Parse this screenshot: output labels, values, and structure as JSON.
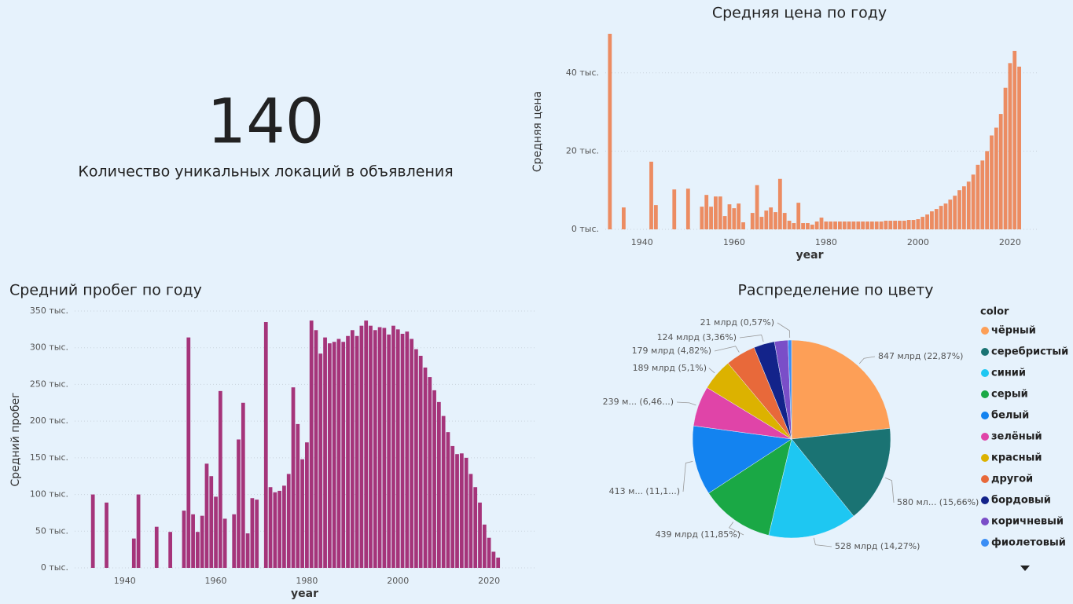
{
  "kpi": {
    "value": 140,
    "label": "Количество уникальных локаций в объявления"
  },
  "chart_data": [
    {
      "type": "bar",
      "title": "Средняя цена по году",
      "x_label": "year",
      "y_label": "Средняя цена",
      "color": "#ec8c62",
      "grid": true,
      "xlim": [
        1932,
        2026
      ],
      "ylim": [
        0,
        50000
      ],
      "xticks": [
        1940,
        1960,
        1980,
        2000,
        2020
      ],
      "yticks": [
        {
          "value": 0,
          "label": "0 тыс."
        },
        {
          "value": 20000,
          "label": "20 тыс."
        },
        {
          "value": 40000,
          "label": "40 тыс."
        }
      ],
      "x": [
        1933,
        1936,
        1942,
        1943,
        1947,
        1950,
        1953,
        1954,
        1955,
        1956,
        1957,
        1958,
        1959,
        1960,
        1961,
        1962,
        1964,
        1965,
        1966,
        1967,
        1968,
        1969,
        1970,
        1971,
        1972,
        1973,
        1974,
        1975,
        1976,
        1977,
        1978,
        1979,
        1980,
        1981,
        1982,
        1983,
        1984,
        1985,
        1986,
        1987,
        1988,
        1989,
        1990,
        1991,
        1992,
        1993,
        1994,
        1995,
        1996,
        1997,
        1998,
        1999,
        2000,
        2001,
        2002,
        2003,
        2004,
        2005,
        2006,
        2007,
        2008,
        2009,
        2010,
        2011,
        2012,
        2013,
        2014,
        2015,
        2016,
        2017,
        2018,
        2019,
        2020,
        2021,
        2022
      ],
      "values": [
        50000,
        5600,
        17300,
        6200,
        10200,
        10400,
        5800,
        8800,
        5800,
        8400,
        8400,
        3400,
        6400,
        5400,
        6600,
        1800,
        4200,
        11300,
        3200,
        4800,
        5600,
        4400,
        12900,
        4200,
        2200,
        1600,
        6800,
        1600,
        1600,
        1200,
        2000,
        3000,
        2000,
        2000,
        2000,
        2000,
        2000,
        2000,
        2000,
        2000,
        2000,
        2000,
        2000,
        2000,
        2000,
        2200,
        2200,
        2200,
        2200,
        2200,
        2400,
        2400,
        2600,
        3200,
        3800,
        4600,
        5200,
        6000,
        6600,
        7600,
        8600,
        10000,
        11000,
        12200,
        14000,
        16500,
        17600,
        20000,
        24000,
        26000,
        29500,
        36200,
        42500,
        45600,
        41600
      ]
    },
    {
      "type": "bar",
      "title": "Средний пробег по году",
      "x_label": "year",
      "y_label": "Средний пробег",
      "color": "#a5347a",
      "grid": true,
      "xlim": [
        1929,
        2030
      ],
      "ylim": [
        0,
        350000
      ],
      "xticks": [
        1940,
        1960,
        1980,
        2000,
        2020
      ],
      "yticks": [
        {
          "value": 0,
          "label": "0 тыс."
        },
        {
          "value": 50000,
          "label": "50 тыс."
        },
        {
          "value": 100000,
          "label": "100 тыс."
        },
        {
          "value": 150000,
          "label": "150 тыс."
        },
        {
          "value": 200000,
          "label": "200 тыс."
        },
        {
          "value": 250000,
          "label": "250 тыс."
        },
        {
          "value": 300000,
          "label": "300 тыс."
        },
        {
          "value": 350000,
          "label": "350 тыс."
        }
      ],
      "x": [
        1933,
        1936,
        1942,
        1943,
        1947,
        1950,
        1953,
        1954,
        1955,
        1956,
        1957,
        1958,
        1959,
        1960,
        1961,
        1962,
        1964,
        1965,
        1966,
        1967,
        1968,
        1969,
        1971,
        1972,
        1973,
        1974,
        1975,
        1976,
        1977,
        1978,
        1979,
        1980,
        1981,
        1982,
        1983,
        1984,
        1985,
        1986,
        1987,
        1988,
        1989,
        1990,
        1991,
        1992,
        1993,
        1994,
        1995,
        1996,
        1997,
        1998,
        1999,
        2000,
        2001,
        2002,
        2003,
        2004,
        2005,
        2006,
        2007,
        2008,
        2009,
        2010,
        2011,
        2012,
        2013,
        2014,
        2015,
        2016,
        2017,
        2018,
        2019,
        2020,
        2021,
        2022
      ],
      "values": [
        100000,
        89000,
        40000,
        100000,
        56000,
        49000,
        78000,
        314000,
        73000,
        49000,
        71000,
        142000,
        125000,
        97000,
        241000,
        67000,
        73000,
        175000,
        225000,
        47000,
        95000,
        93000,
        335000,
        110000,
        103000,
        105000,
        112000,
        128000,
        246000,
        196000,
        148000,
        171000,
        337000,
        324000,
        292000,
        314000,
        306000,
        308000,
        312000,
        308000,
        316000,
        324000,
        316000,
        330000,
        337000,
        330000,
        324000,
        328000,
        327000,
        318000,
        330000,
        325000,
        319000,
        322000,
        312000,
        298000,
        289000,
        273000,
        260000,
        242000,
        226000,
        207000,
        185000,
        166000,
        155000,
        156000,
        150000,
        128000,
        110000,
        89000,
        59000,
        41000,
        22000,
        14000
      ]
    },
    {
      "type": "pie",
      "title": "Распределение по цвету",
      "legend_title": "color",
      "categories": [
        "чёрный",
        "серебристый",
        "синий",
        "серый",
        "белый",
        "зелёный",
        "красный",
        "другой",
        "бордовый",
        "коричневый",
        "фиолетовый"
      ],
      "values": [
        847,
        580,
        528,
        439,
        413,
        239,
        189,
        179,
        124,
        80,
        21
      ],
      "value_labels": [
        "847 млрд (22,87%)",
        "580 мл... (15,66%)",
        "528 млрд (14,27%)",
        "439 млрд (11,85%)",
        "413 м... (11,1...)",
        "239 м... (6,46...)",
        "189 млрд (5,1%)",
        "179 млрд (4,82%)",
        "124 млрд (3,36%)",
        null,
        "21 млрд (0,57%)"
      ],
      "colors": [
        "#fd9f57",
        "#1a7373",
        "#1ec7f2",
        "#1aa845",
        "#1383f0",
        "#e044a8",
        "#dcb200",
        "#e8693a",
        "#13238a",
        "#7a4ec8",
        "#3a8ef5"
      ]
    }
  ]
}
